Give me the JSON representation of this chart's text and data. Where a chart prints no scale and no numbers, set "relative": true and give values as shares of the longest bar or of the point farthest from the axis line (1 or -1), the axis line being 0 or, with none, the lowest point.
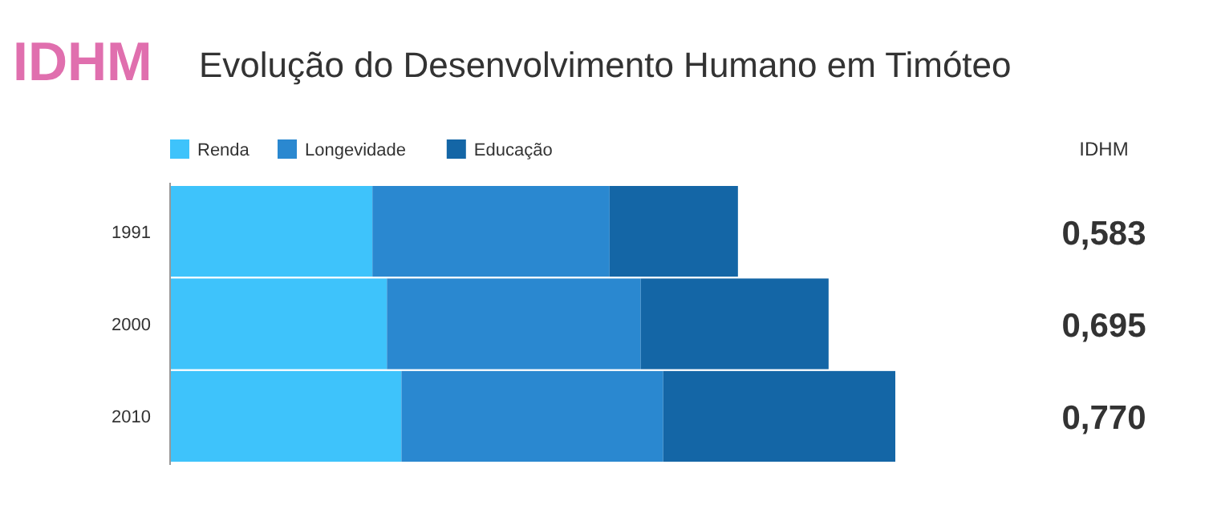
{
  "chart_data": {
    "type": "bar",
    "orientation": "horizontal",
    "stacked": true,
    "relative": true,
    "subtitle": "IDHM",
    "title": "Evolução do Desenvolvimento Humano em Timóteo",
    "categories": [
      "1991",
      "2000",
      "2010"
    ],
    "series": [
      {
        "name": "Renda",
        "color": "#3ec3fb",
        "values": [
          0.279,
          0.299,
          0.319
        ]
      },
      {
        "name": "Longevidade",
        "color": "#2a88d0",
        "values": [
          0.327,
          0.35,
          0.361
        ]
      },
      {
        "name": "Educação",
        "color": "#1466a6",
        "values": [
          0.177,
          0.259,
          0.32
        ]
      }
    ],
    "legend": "top left",
    "annotations": [
      "IDHM",
      "0,583",
      "0,695",
      "0,770"
    ]
  }
}
